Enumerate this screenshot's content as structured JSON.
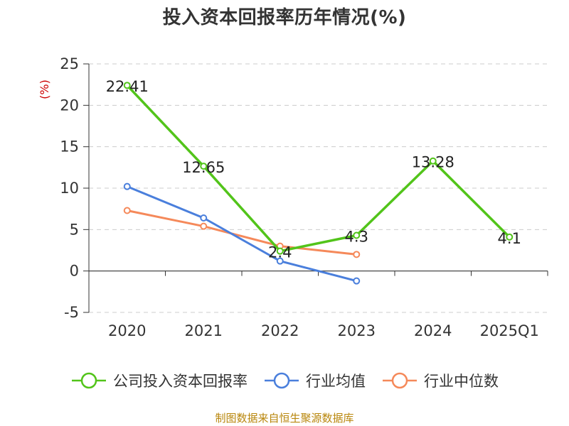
{
  "title": "投入资本回报率历年情况(%)",
  "footer": "制图数据来自恒生聚源数据库",
  "chart_data": {
    "type": "line",
    "categories": [
      "2020",
      "2021",
      "2022",
      "2023",
      "2024",
      "2025Q1"
    ],
    "ylabel": "(%)",
    "ylim": [
      -5,
      25
    ],
    "yticks": [
      25,
      20,
      15,
      10,
      5,
      0,
      -5
    ],
    "grid": true,
    "legend_position": "bottom",
    "series": [
      {
        "name": "公司投入资本回报率",
        "color": "#52c41a",
        "values": [
          22.41,
          12.65,
          2.4,
          4.3,
          13.28,
          4.1
        ],
        "labels": [
          "22.41",
          "12.65",
          "2.4",
          "4.3",
          "13.28",
          "4.1"
        ],
        "show_labels": true
      },
      {
        "name": "行业均值",
        "color": "#4a7fdc",
        "values": [
          10.2,
          6.4,
          1.2,
          -1.2,
          null,
          null
        ],
        "show_labels": false
      },
      {
        "name": "行业中位数",
        "color": "#f5895a",
        "values": [
          7.3,
          5.4,
          3.0,
          2.0,
          null,
          null
        ],
        "show_labels": false
      }
    ]
  }
}
